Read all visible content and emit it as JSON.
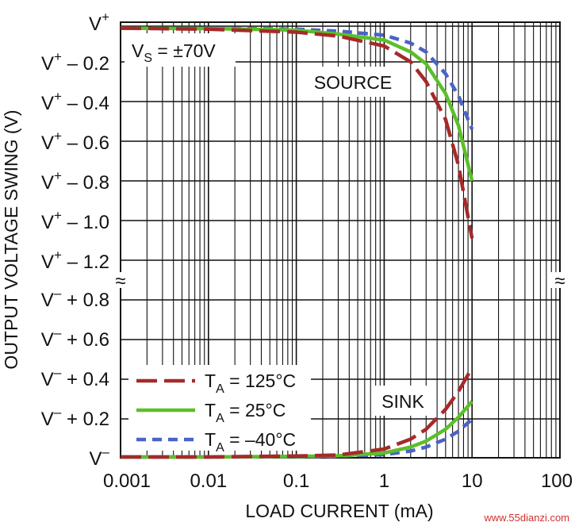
{
  "chart_data": {
    "type": "line",
    "xscale": "log",
    "xlim": [
      0.001,
      100
    ],
    "x_ticks": [
      "0.001",
      "0.01",
      "0.1",
      "1",
      "10",
      "100"
    ],
    "xlabel": "LOAD CURRENT (mA)",
    "ylabel": "OUTPUT VOLTAGE SWING (V)",
    "y_ticks_top": [
      {
        "base": "V",
        "sup": "+",
        "rest": ""
      },
      {
        "base": "V",
        "sup": "+",
        "rest": " – 0.2"
      },
      {
        "base": "V",
        "sup": "+",
        "rest": " – 0.4"
      },
      {
        "base": "V",
        "sup": "+",
        "rest": " – 0.6"
      },
      {
        "base": "V",
        "sup": "+",
        "rest": " – 0.8"
      },
      {
        "base": "V",
        "sup": "+",
        "rest": " – 1.0"
      },
      {
        "base": "V",
        "sup": "+",
        "rest": " – 1.2"
      }
    ],
    "y_ticks_bottom": [
      {
        "base": "V",
        "sup": "–",
        "rest": " + 0.8"
      },
      {
        "base": "V",
        "sup": "–",
        "rest": " + 0.6"
      },
      {
        "base": "V",
        "sup": "–",
        "rest": " + 0.4"
      },
      {
        "base": "V",
        "sup": "–",
        "rest": " + 0.2"
      },
      {
        "base": "V",
        "sup": "–",
        "rest": ""
      }
    ],
    "axis_break": "≈",
    "grid": true,
    "annotations": {
      "supply": {
        "main": "V",
        "sub": "S",
        "rest": " = ±70V"
      },
      "source": "SOURCE",
      "sink": "SINK"
    },
    "legend": [
      {
        "main": "T",
        "sub": "A",
        "rest": " = 125°C",
        "color": "#a52a2a",
        "dash": "long-dash"
      },
      {
        "main": "T",
        "sub": "A",
        "rest": " = 25°C",
        "color": "#5cbf2a",
        "dash": "solid"
      },
      {
        "main": "T",
        "sub": "A",
        "rest": " = –40°C",
        "color": "#4a63c8",
        "dash": "short-dash"
      }
    ],
    "series": [
      {
        "group": "source",
        "temp": "125",
        "x": [
          0.001,
          0.01,
          0.1,
          0.3,
          1,
          2,
          3,
          5,
          7,
          10
        ],
        "y": [
          -0.01,
          -0.015,
          -0.03,
          -0.05,
          -0.1,
          -0.18,
          -0.28,
          -0.47,
          -0.7,
          -1.07
        ]
      },
      {
        "group": "source",
        "temp": "25",
        "x": [
          0.001,
          0.01,
          0.1,
          0.3,
          1,
          2,
          3,
          5,
          7,
          10
        ],
        "y": [
          -0.01,
          -0.012,
          -0.02,
          -0.04,
          -0.07,
          -0.13,
          -0.19,
          -0.34,
          -0.5,
          -0.78
        ]
      },
      {
        "group": "source",
        "temp": "-40",
        "x": [
          0.001,
          0.01,
          0.1,
          0.3,
          1,
          2,
          3,
          5,
          7,
          10
        ],
        "y": [
          -0.01,
          -0.011,
          -0.015,
          -0.025,
          -0.045,
          -0.085,
          -0.13,
          -0.24,
          -0.35,
          -0.52
        ]
      },
      {
        "group": "sink",
        "temp": "125",
        "x": [
          0.001,
          0.01,
          0.1,
          0.3,
          1,
          2,
          3,
          5,
          7,
          10
        ],
        "y": [
          0.0,
          0.0,
          0.005,
          0.01,
          0.04,
          0.09,
          0.14,
          0.24,
          0.33,
          0.45
        ]
      },
      {
        "group": "sink",
        "temp": "25",
        "x": [
          0.001,
          0.01,
          0.1,
          0.3,
          1,
          2,
          3,
          5,
          7,
          10
        ],
        "y": [
          0.0,
          0.0,
          0.003,
          0.006,
          0.02,
          0.05,
          0.08,
          0.14,
          0.2,
          0.28
        ]
      },
      {
        "group": "sink",
        "temp": "-40",
        "x": [
          0.001,
          0.01,
          0.1,
          0.3,
          1,
          2,
          3,
          5,
          7,
          10
        ],
        "y": [
          0.0,
          0.0,
          0.002,
          0.004,
          0.012,
          0.03,
          0.05,
          0.09,
          0.13,
          0.19
        ]
      }
    ]
  },
  "watermark": "www.55dianzi.com"
}
